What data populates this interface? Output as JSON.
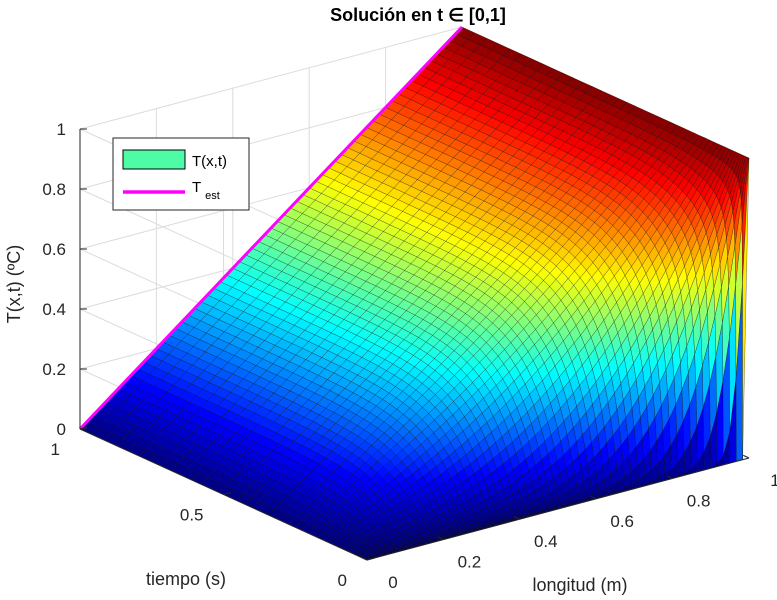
{
  "chart_data": {
    "type": "surface",
    "title": "Solución en t ∈ [0,1]",
    "xlabel": "longitud (m)",
    "ylabel": "tiempo (s)",
    "zlabel": "T(x,t) (ºC)",
    "x_ticks": [
      "0",
      "0.2",
      "0.4",
      "0.6",
      "0.8",
      "1"
    ],
    "y_ticks": [
      "0",
      "0.5",
      "1"
    ],
    "z_ticks": [
      "0",
      "0.2",
      "0.4",
      "0.6",
      "0.8",
      "1"
    ],
    "xlim": [
      0,
      1
    ],
    "ylim": [
      0,
      1
    ],
    "zlim": [
      0,
      1
    ],
    "colormap": "jet",
    "surface_function": "T(x,t) = x + sum_n 2(-1)^n/(n*pi) sin(n*pi*x) exp(-(n*pi)^2 t)",
    "boundary": {
      "x0": 0,
      "x1": 1,
      "initial": 0
    },
    "grid": true,
    "legend": {
      "location": "top-left",
      "entries": [
        {
          "label": "T(x,t)",
          "color": "#4dfca5"
        },
        {
          "label": "T",
          "subscript": "est",
          "color": "#ff00ff"
        }
      ]
    },
    "steady_state_line": {
      "x": [
        0,
        1
      ],
      "T": [
        0,
        1
      ]
    }
  }
}
